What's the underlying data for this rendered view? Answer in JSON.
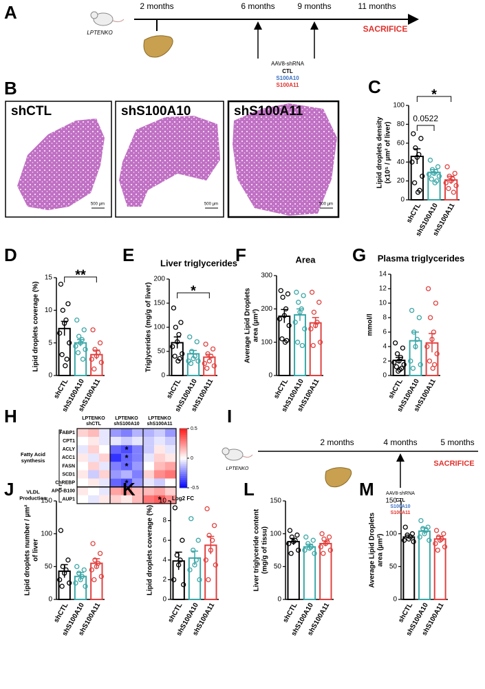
{
  "timeline_a": {
    "panel": "A",
    "mouse_label": "LPTENKO",
    "times": [
      "2 months",
      "6 months",
      "9 months",
      "11 months"
    ],
    "end_label": "SACRIFICE",
    "injection": {
      "title": "AAV8-shRNA",
      "groups": [
        "CTL",
        "S100A10",
        "S100A11"
      ],
      "colors": [
        "#000000",
        "#3a6fc0",
        "#e0302a"
      ]
    }
  },
  "histology": {
    "panel": "B",
    "images": [
      {
        "label": "shCTL",
        "scale": "500 µm"
      },
      {
        "label": "shS100A10",
        "scale": "500 µm"
      },
      {
        "label": "shS100A11",
        "scale": "500 µm"
      }
    ]
  },
  "timeline_i": {
    "panel": "I",
    "mouse_label": "LPTENKO",
    "times": [
      "2 months",
      "4 months",
      "5 months"
    ],
    "end_label": "SACRIFICE",
    "injection": {
      "title": "AAV8-shRNA",
      "groups": [
        "CTL",
        "S100A10",
        "S100A11"
      ],
      "colors": [
        "#000000",
        "#3a6fc0",
        "#e0302a"
      ]
    }
  },
  "chart_data": [
    {
      "type": "bar",
      "panel": "C",
      "ylabel": [
        "Lipid droplets density",
        "(x10⁵ / µm² of liver)"
      ],
      "categories": [
        "shCTL",
        "shS100A10",
        "shS100A11"
      ],
      "colors": [
        "#000000",
        "#3aa6a6",
        "#e0413f"
      ],
      "values": [
        46,
        29,
        21
      ],
      "errors": [
        8,
        3,
        4
      ],
      "points": [
        [
          70,
          65,
          55,
          48,
          45,
          40,
          25,
          18,
          10,
          8
        ],
        [
          42,
          35,
          32,
          30,
          28,
          27,
          25,
          22,
          20,
          18
        ],
        [
          35,
          28,
          25,
          22,
          20,
          18,
          15,
          12,
          8
        ]
      ],
      "ylim": [
        0,
        100
      ],
      "yticks": [
        0,
        20,
        40,
        60,
        80,
        100
      ],
      "annotations": [
        "0.0522",
        "*"
      ]
    },
    {
      "type": "bar",
      "panel": "D",
      "ylabel": [
        "Lipid droplets coverage (%)"
      ],
      "categories": [
        "shCTL",
        "shS100A10",
        "shS100A11"
      ],
      "colors": [
        "#000000",
        "#3aa6a6",
        "#e0413f"
      ],
      "values": [
        7.2,
        5.0,
        3.2
      ],
      "errors": [
        1.1,
        0.5,
        0.7
      ],
      "points": [
        [
          14,
          11,
          10,
          8.5,
          8,
          6.5,
          5,
          3.2,
          2.5,
          1.5
        ],
        [
          8.5,
          7,
          6,
          5.5,
          5,
          4.5,
          4,
          3.5,
          2.5
        ],
        [
          7,
          5,
          4,
          3.5,
          3,
          2.5,
          2,
          1
        ]
      ],
      "ylim": [
        0,
        15
      ],
      "yticks": [
        0,
        5,
        10,
        15
      ],
      "annotations": [
        "**"
      ]
    },
    {
      "type": "bar",
      "panel": "E",
      "title": "Liver triglycerides",
      "ylabel": [
        "Triglycerides (mg/g of liver)"
      ],
      "categories": [
        "shCTL",
        "shS100A10",
        "shS100A11"
      ],
      "colors": [
        "#000000",
        "#3aa6a6",
        "#e0413f"
      ],
      "values": [
        68,
        45,
        38
      ],
      "errors": [
        12,
        7,
        6
      ],
      "points": [
        [
          140,
          110,
          100,
          85,
          70,
          60,
          45,
          40,
          35,
          30
        ],
        [
          80,
          70,
          50,
          40,
          35,
          30,
          30,
          25
        ],
        [
          65,
          55,
          45,
          40,
          30,
          25,
          20,
          15
        ]
      ],
      "ylim": [
        0,
        200
      ],
      "yticks": [
        0,
        50,
        100,
        150,
        200
      ],
      "annotations": [
        "*"
      ]
    },
    {
      "type": "bar",
      "panel": "F",
      "title": "Area",
      "ylabel": [
        "Average Lipid  Droplets",
        "area (µm²)"
      ],
      "categories": [
        "shCTL",
        "shS100A10",
        "shS100A11"
      ],
      "colors": [
        "#000000",
        "#3aa6a6",
        "#e0413f"
      ],
      "values": [
        178,
        182,
        158
      ],
      "errors": [
        20,
        18,
        16
      ],
      "points": [
        [
          255,
          245,
          235,
          200,
          180,
          170,
          150,
          110,
          105,
          100
        ],
        [
          250,
          240,
          220,
          200,
          190,
          160,
          140,
          100,
          90
        ],
        [
          250,
          220,
          190,
          160,
          150,
          140,
          100,
          90
        ]
      ],
      "ylim": [
        0,
        300
      ],
      "yticks": [
        0,
        100,
        200,
        300
      ],
      "annotations": []
    },
    {
      "type": "bar",
      "panel": "G",
      "title": "Plasma triglycerides",
      "ylabel": [
        "mmol/l"
      ],
      "categories": [
        "shCTL",
        "shS100A10",
        "shS100A11"
      ],
      "colors": [
        "#000000",
        "#3aa6a6",
        "#e0413f"
      ],
      "values": [
        2.1,
        4.8,
        4.5
      ],
      "errors": [
        0.4,
        1.2,
        1.3
      ],
      "points": [
        [
          4.5,
          3.8,
          3,
          2.5,
          2,
          1.8,
          1.5,
          1.2,
          1,
          0.8,
          0.6
        ],
        [
          9,
          8,
          6,
          5,
          4,
          2,
          1.5,
          1
        ],
        [
          12,
          10,
          8,
          6,
          5,
          4,
          3,
          2,
          1.5,
          1
        ]
      ],
      "ylim": [
        0,
        14
      ],
      "yticks": [
        0,
        2,
        4,
        6,
        8,
        10,
        12,
        14
      ],
      "annotations": []
    },
    {
      "type": "heatmap",
      "panel": "H",
      "column_groups": [
        [
          "LPTENKO",
          "shCTL"
        ],
        [
          "LPTENKO",
          "shS100A10"
        ],
        [
          "LPTENKO",
          "shS100A11"
        ]
      ],
      "rows": [
        "FABP1",
        "CPT1",
        "ACLY",
        "ACC1",
        "FASN",
        "SCD1",
        "ChREBP",
        "APO-B100",
        "AUP1"
      ],
      "row_groups": [
        [
          "Fatty  Acid",
          "synthesis"
        ],
        [
          "VLDL",
          "Production"
        ]
      ],
      "values": [
        [
          0.1,
          0.15,
          -0.05,
          -0.2,
          -0.25,
          -0.15,
          -0.15,
          -0.1,
          -0.2
        ],
        [
          0,
          0.05,
          -0.05,
          -0.05,
          -0.1,
          -0.05,
          -0.1,
          -0.05,
          -0.1
        ],
        [
          -0.05,
          0.1,
          0,
          -0.3,
          -0.35,
          -0.25,
          -0.1,
          0.05,
          -0.05
        ],
        [
          0.05,
          -0.05,
          0.1,
          -0.4,
          -0.3,
          -0.25,
          -0.05,
          0.1,
          0.05
        ],
        [
          0,
          0.1,
          -0.05,
          -0.25,
          -0.3,
          -0.2,
          0,
          0.15,
          0.2
        ],
        [
          0.05,
          -0.1,
          0.1,
          -0.2,
          -0.15,
          -0.25,
          0.1,
          0.25,
          0.3
        ],
        [
          0,
          0.05,
          -0.05,
          -0.3,
          -0.35,
          -0.2,
          -0.05,
          -0.1,
          0
        ],
        [
          0.05,
          0,
          -0.05,
          0.2,
          0.25,
          0.15,
          0.15,
          0.2,
          0.1
        ],
        [
          0,
          -0.05,
          0.05,
          0.1,
          0.05,
          0.15,
          0.3,
          0.35,
          0.25
        ]
      ],
      "cell_labels": [
        [
          null,
          null,
          null,
          null,
          null,
          null,
          null,
          null,
          null
        ],
        [
          null,
          null,
          null,
          null,
          null,
          null,
          null,
          null,
          null
        ],
        [
          null,
          null,
          null,
          null,
          "*",
          null,
          null,
          null,
          null
        ],
        [
          null,
          null,
          null,
          null,
          "*",
          null,
          null,
          null,
          null
        ],
        [
          null,
          null,
          null,
          null,
          "*",
          null,
          null,
          null,
          null
        ],
        [
          null,
          null,
          null,
          null,
          null,
          null,
          null,
          null,
          null
        ],
        [
          null,
          null,
          null,
          null,
          "*",
          null,
          null,
          null,
          null
        ],
        [
          null,
          null,
          null,
          null,
          null,
          null,
          null,
          null,
          null
        ],
        [
          null,
          null,
          null,
          null,
          null,
          null,
          null,
          "*",
          null
        ]
      ],
      "zlim": [
        -0.5,
        0.5
      ],
      "zticks": [
        0.5,
        0,
        -0.5
      ],
      "colorbar_label": "Log2 FC"
    },
    {
      "type": "bar",
      "panel": "J",
      "ylabel": [
        "Lipid droplets number / µm²",
        "of liver"
      ],
      "categories": [
        "shCTL",
        "shS100A10",
        "shS100A11"
      ],
      "colors": [
        "#000000",
        "#3aa6a6",
        "#e0413f"
      ],
      "values": [
        43,
        35,
        55
      ],
      "errors": [
        10,
        6,
        7
      ],
      "points": [
        [
          105,
          60,
          50,
          45,
          40,
          30,
          25,
          20
        ],
        [
          50,
          45,
          40,
          35,
          30,
          25,
          20
        ],
        [
          85,
          70,
          60,
          55,
          50,
          45,
          35,
          30
        ]
      ],
      "ylim": [
        0,
        150
      ],
      "yticks": [
        0,
        50,
        100,
        150
      ],
      "annotations": []
    },
    {
      "type": "bar",
      "panel": "K",
      "ylabel": [
        "Lipid droplets coverage (%)"
      ],
      "categories": [
        "shCTL",
        "shS100A10",
        "shS100A11"
      ],
      "colors": [
        "#000000",
        "#3aa6a6",
        "#e0413f"
      ],
      "values": [
        3.9,
        4.2,
        5.5
      ],
      "errors": [
        0.9,
        0.7,
        0.9
      ],
      "points": [
        [
          9.3,
          6,
          4.5,
          4,
          3.5,
          2,
          1.5
        ],
        [
          8.2,
          6,
          5,
          4,
          3.5,
          3,
          2
        ],
        [
          9.2,
          7.5,
          6.5,
          6,
          5,
          4,
          3.5,
          2
        ]
      ],
      "ylim": [
        0,
        10
      ],
      "yticks": [
        0,
        2,
        4,
        6,
        8,
        10
      ],
      "annotations": []
    },
    {
      "type": "bar",
      "panel": "L",
      "ylabel": [
        "Liver triglyceride content",
        "(mg/g of tissu)"
      ],
      "categories": [
        "shCTL",
        "shS100A10",
        "shS100A11"
      ],
      "colors": [
        "#000000",
        "#3aa6a6",
        "#e0413f"
      ],
      "values": [
        88,
        80,
        85
      ],
      "errors": [
        5,
        4,
        4
      ],
      "points": [
        [
          105,
          98,
          95,
          90,
          88,
          85,
          75,
          70
        ],
        [
          95,
          90,
          85,
          80,
          78,
          75,
          70
        ],
        [
          100,
          95,
          92,
          88,
          85,
          80,
          75,
          70
        ]
      ],
      "ylim": [
        0,
        150
      ],
      "yticks": [
        0,
        50,
        100,
        150
      ],
      "annotations": []
    },
    {
      "type": "bar",
      "panel": "M",
      "ylabel": [
        "Average Lipid  Droplets",
        "area (µm²)"
      ],
      "categories": [
        "shCTL",
        "shS100A10",
        "shS100A11"
      ],
      "colors": [
        "#000000",
        "#3aa6a6",
        "#e0413f"
      ],
      "values": [
        95,
        104,
        92
      ],
      "errors": [
        3,
        5,
        4
      ],
      "points": [
        [
          110,
          100,
          98,
          95,
          92,
          90,
          88
        ],
        [
          120,
          110,
          108,
          105,
          100,
          95,
          90
        ],
        [
          105,
          100,
          95,
          92,
          90,
          85,
          80,
          75
        ]
      ],
      "ylim": [
        0,
        150
      ],
      "yticks": [
        0,
        50,
        100,
        150
      ],
      "annotations": []
    }
  ]
}
